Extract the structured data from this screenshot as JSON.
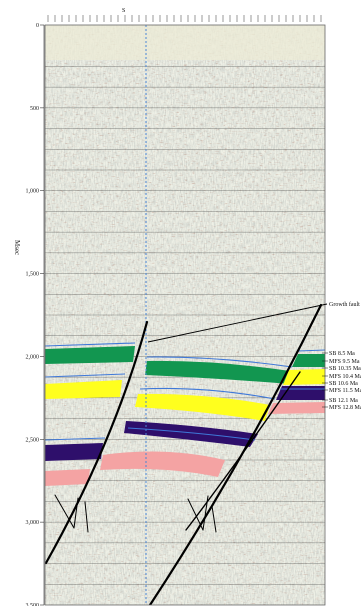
{
  "figure": {
    "top_marker": "S",
    "y_axis_title": "Msec",
    "y_ticks": [
      "0",
      "500",
      "1,000",
      "1,500",
      "2,000",
      "2,500",
      "3,000",
      "3,500"
    ],
    "y_range_ms": [
      0,
      3500
    ],
    "annotation": "Growth fault",
    "horizon_labels": [
      "SB 8.5 Ma",
      "MFS 9.5 Ma",
      "SB 10.35 Ma",
      "MFS 10.4 Ma",
      "SB 10.6 Ma",
      "MFS 11.5 Ma",
      "SB 12.1  Ma",
      "MFS 12.8 Ma"
    ],
    "horizon_colors": {
      "green": "#129650",
      "yellow": "#ffff1e",
      "purple": "#2e0f6b",
      "pink": "#f4a3a3",
      "blue_line": "#3f78d8",
      "well": "#4a86d6"
    }
  }
}
